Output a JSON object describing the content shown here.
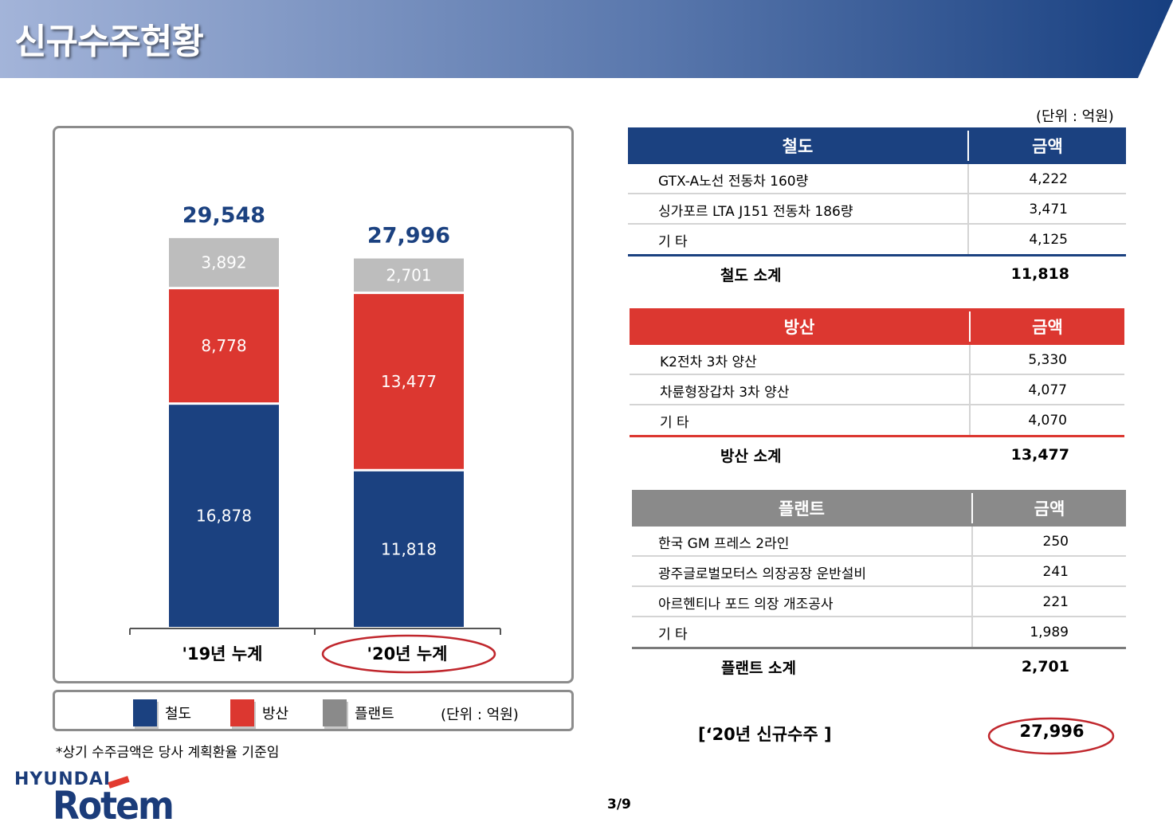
{
  "page": {
    "title": "신규수주현황",
    "footnote": "*상기 수주금액은 당사 계획환율 기준임",
    "page_number": "3/9",
    "logo_top": "HYUNDAI",
    "logo_main": "Rotem"
  },
  "colors": {
    "rail": "#1b4180",
    "defense": "#dc3730",
    "plant": "#8a8a8a",
    "plant_bar": "#bdbdbd",
    "highlight": "#c0272d"
  },
  "chart_data": {
    "type": "bar",
    "stacked": true,
    "categories": [
      "'19년 누계",
      "'20년 누계"
    ],
    "series": [
      {
        "name": "철도",
        "values": [
          16878,
          11818
        ]
      },
      {
        "name": "방산",
        "values": [
          8778,
          13477
        ]
      },
      {
        "name": "플랜트",
        "values": [
          3892,
          2701
        ]
      }
    ],
    "totals": [
      "29,548",
      "27,996"
    ],
    "value_labels": [
      [
        "16,878",
        "11,818"
      ],
      [
        "8,778",
        "13,477"
      ],
      [
        "3,892",
        "2,701"
      ]
    ],
    "highlighted_category": 1,
    "unit": "(단위 : 억원)",
    "legend": [
      "철도",
      "방산",
      "플랜트"
    ],
    "legend_placement": "bottom",
    "grid": false
  },
  "tables": {
    "unit": "(단위 : 억원)",
    "rail": {
      "header": [
        "철도",
        "금액"
      ],
      "rows": [
        {
          "item": "GTX-A노선 전동차 160량",
          "amount": "4,222"
        },
        {
          "item": "싱가포르 LTA J151 전동차 186량",
          "amount": "3,471"
        },
        {
          "item": "기    타",
          "amount": "4,125"
        }
      ],
      "subtotal": {
        "label": "철도 소계",
        "amount": "11,818"
      }
    },
    "defense": {
      "header": [
        "방산",
        "금액"
      ],
      "rows": [
        {
          "item": "K2전차 3차 양산",
          "amount": "5,330"
        },
        {
          "item": "차륜형장갑차 3차 양산",
          "amount": "4,077"
        },
        {
          "item": "기    타",
          "amount": "4,070"
        }
      ],
      "subtotal": {
        "label": "방산 소계",
        "amount": "13,477"
      }
    },
    "plant": {
      "header": [
        "플랜트",
        "금액"
      ],
      "rows": [
        {
          "item": "한국 GM 프레스 2라인",
          "amount": "250"
        },
        {
          "item": "광주글로벌모터스 의장공장 운반설비",
          "amount": "241"
        },
        {
          "item": "아르헨티나 포드 의장 개조공사",
          "amount": "221"
        },
        {
          "item": "기    타",
          "amount": "1,989"
        }
      ],
      "subtotal": {
        "label": "플랜트 소계",
        "amount": "2,701"
      }
    },
    "grand_total": {
      "label": "[‘20년 신규수주 ]",
      "amount": "27,996"
    }
  }
}
